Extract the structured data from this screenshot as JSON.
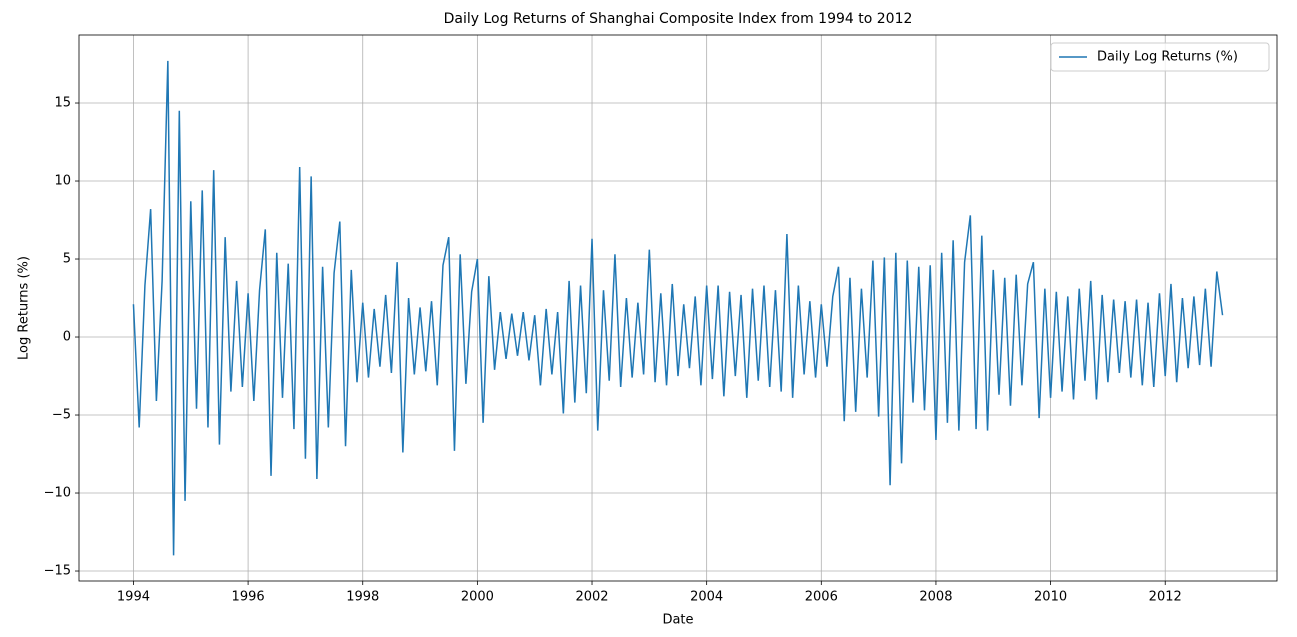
{
  "chart_data": {
    "type": "line",
    "title": "Daily Log Returns of Shanghai Composite Index from 1994 to 2012",
    "xlabel": "Date",
    "ylabel": "Log Returns (%)",
    "x": [
      1994,
      1994.1,
      1994.2,
      1994.3,
      1994.4,
      1994.5,
      1994.6,
      1994.7,
      1994.8,
      1994.9,
      1995,
      1995.1,
      1995.2,
      1995.3,
      1995.4,
      1995.5,
      1995.6,
      1995.7,
      1995.8,
      1995.9,
      1996,
      1996.1,
      1996.2,
      1996.3,
      1996.4,
      1996.5,
      1996.6,
      1996.7,
      1996.8,
      1996.9,
      1997,
      1997.1,
      1997.2,
      1997.3,
      1997.4,
      1997.5,
      1997.6,
      1997.7,
      1997.8,
      1997.9,
      1998,
      1998.1,
      1998.2,
      1998.3,
      1998.4,
      1998.5,
      1998.6,
      1998.7,
      1998.8,
      1998.9,
      1999,
      1999.1,
      1999.2,
      1999.3,
      1999.4,
      1999.5,
      1999.6,
      1999.7,
      1999.8,
      1999.9,
      2000,
      2000.1,
      2000.2,
      2000.3,
      2000.4,
      2000.5,
      2000.6,
      2000.7,
      2000.8,
      2000.9,
      2001,
      2001.1,
      2001.2,
      2001.3,
      2001.4,
      2001.5,
      2001.6,
      2001.7,
      2001.8,
      2001.9,
      2002,
      2002.1,
      2002.2,
      2002.3,
      2002.4,
      2002.5,
      2002.6,
      2002.7,
      2002.8,
      2002.9,
      2003,
      2003.1,
      2003.2,
      2003.3,
      2003.4,
      2003.5,
      2003.6,
      2003.7,
      2003.8,
      2003.9,
      2004,
      2004.1,
      2004.2,
      2004.3,
      2004.4,
      2004.5,
      2004.6,
      2004.7,
      2004.8,
      2004.9,
      2005,
      2005.1,
      2005.2,
      2005.3,
      2005.4,
      2005.5,
      2005.6,
      2005.7,
      2005.8,
      2005.9,
      2006,
      2006.1,
      2006.2,
      2006.3,
      2006.4,
      2006.5,
      2006.6,
      2006.7,
      2006.8,
      2006.9,
      2007,
      2007.1,
      2007.2,
      2007.3,
      2007.4,
      2007.5,
      2007.6,
      2007.7,
      2007.8,
      2007.9,
      2008,
      2008.1,
      2008.2,
      2008.3,
      2008.4,
      2008.5,
      2008.6,
      2008.7,
      2008.8,
      2008.9,
      2009,
      2009.1,
      2009.2,
      2009.3,
      2009.4,
      2009.5,
      2009.6,
      2009.7,
      2009.8,
      2009.9,
      2010,
      2010.1,
      2010.2,
      2010.3,
      2010.4,
      2010.5,
      2010.6,
      2010.7,
      2010.8,
      2010.9,
      2011,
      2011.1,
      2011.2,
      2011.3,
      2011.4,
      2011.5,
      2011.6,
      2011.7,
      2011.8,
      2011.9,
      2012,
      2012.1,
      2012.2,
      2012.3,
      2012.4,
      2012.5,
      2012.6,
      2012.7,
      2012.8,
      2012.9,
      2013
    ],
    "series": [
      {
        "name": "Daily Log Returns (%)",
        "color": "#1f77b4",
        "values": [
          2.1,
          -5.8,
          3.3,
          8.2,
          -4.1,
          3.6,
          17.7,
          -14.0,
          14.5,
          -10.5,
          8.7,
          -4.6,
          9.4,
          -5.8,
          10.7,
          -6.9,
          6.4,
          -3.5,
          3.6,
          -3.2,
          2.8,
          -4.1,
          3.0,
          6.9,
          -8.9,
          5.4,
          -3.9,
          4.7,
          -5.9,
          10.9,
          -7.8,
          10.3,
          -9.1,
          4.5,
          -5.8,
          4.1,
          7.4,
          -7.0,
          4.3,
          -2.9,
          2.2,
          -2.6,
          1.8,
          -1.9,
          2.7,
          -2.3,
          4.8,
          -7.4,
          2.5,
          -2.4,
          1.9,
          -2.2,
          2.3,
          -3.1,
          4.6,
          6.4,
          -7.3,
          5.3,
          -3.0,
          2.9,
          5.0,
          -5.5,
          3.9,
          -2.1,
          1.6,
          -1.4,
          1.5,
          -1.2,
          1.6,
          -1.5,
          1.4,
          -3.1,
          1.8,
          -2.4,
          1.6,
          -4.9,
          3.6,
          -4.2,
          3.3,
          -3.6,
          6.3,
          -6.0,
          3.0,
          -2.8,
          5.3,
          -3.2,
          2.5,
          -2.6,
          2.2,
          -2.4,
          5.6,
          -2.9,
          2.8,
          -3.1,
          3.4,
          -2.5,
          2.1,
          -2.0,
          2.6,
          -3.1,
          3.3,
          -2.7,
          3.3,
          -3.8,
          2.9,
          -2.5,
          2.7,
          -3.9,
          3.1,
          -2.8,
          3.3,
          -3.2,
          3.0,
          -3.5,
          6.6,
          -3.9,
          3.3,
          -2.4,
          2.3,
          -2.6,
          2.1,
          -1.9,
          2.6,
          4.5,
          -5.4,
          3.8,
          -4.8,
          3.1,
          -2.6,
          4.9,
          -5.1,
          5.1,
          -9.5,
          5.4,
          -8.1,
          4.9,
          -4.2,
          4.5,
          -4.7,
          4.6,
          -6.6,
          5.4,
          -5.5,
          6.2,
          -6.0,
          4.8,
          7.8,
          -5.9,
          6.5,
          -6.0,
          4.3,
          -3.7,
          3.8,
          -4.4,
          4.0,
          -3.1,
          3.4,
          4.8,
          -5.2,
          3.1,
          -3.9,
          2.9,
          -3.5,
          2.6,
          -4.0,
          3.1,
          -2.8,
          3.6,
          -4.0,
          2.7,
          -2.9,
          2.4,
          -2.3,
          2.3,
          -2.6,
          2.4,
          -3.1,
          2.2,
          -3.2,
          2.8,
          -2.5,
          3.4,
          -2.9,
          2.5,
          -2.0,
          2.6,
          -1.8,
          3.1,
          -1.9,
          4.2,
          1.4
        ]
      }
    ],
    "xlim": [
      1993.05,
      2013.95
    ],
    "xticks": [
      1994,
      1996,
      1998,
      2000,
      2002,
      2004,
      2006,
      2008,
      2010,
      2012
    ],
    "ylim": [
      -15.64,
      19.36
    ],
    "yticks": [
      {
        "value": -15,
        "label": "−15"
      },
      {
        "value": -10,
        "label": "−10"
      },
      {
        "value": -5,
        "label": "−5"
      },
      0,
      5,
      10,
      15
    ],
    "grid": true,
    "legend": "upper right"
  }
}
